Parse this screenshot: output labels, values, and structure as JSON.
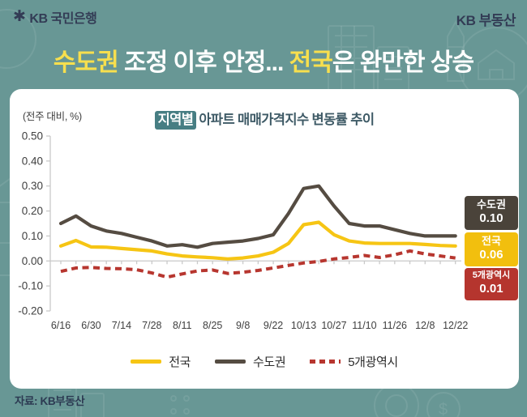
{
  "header": {
    "logo_brand": "KB 국민은행",
    "logo_star": "✱",
    "right_brand": "KB 부동산",
    "headline": {
      "part1_highlight": "수도권",
      "part2": " 조정 이후 안정... ",
      "part3_highlight": "전국",
      "part4": "은 완만한 상승"
    }
  },
  "card": {
    "unit_label": "(전주 대비, %)",
    "title": {
      "badge": "지역별",
      "text": "아파트 매매가격지수 변동률 추이"
    },
    "callouts": [
      {
        "label": "수도권",
        "value": "0.10",
        "color": "#4a433a"
      },
      {
        "label": "전국",
        "value": "0.06",
        "color": "#f2bf0e"
      },
      {
        "label": "5개광역시",
        "value": "0.01",
        "color": "#b5352e"
      }
    ],
    "legend": [
      {
        "label": "전국",
        "color": "#f6c514",
        "dashed": false
      },
      {
        "label": "수도권",
        "color": "#554c42",
        "dashed": false
      },
      {
        "label": "5개광역시",
        "color": "#b7362f",
        "dashed": true
      }
    ]
  },
  "footer": {
    "source": "자료: KB부동산"
  },
  "colors": {
    "background_teal": "#689795",
    "headline_yellow": "#f7df4e",
    "brand_navy": "#333c55",
    "badge_teal": "#477e83"
  },
  "chart_data": {
    "type": "line",
    "title": "지역별 아파트 매매가격지수 변동률 추이",
    "unit": "(전주 대비, %)",
    "ylim": [
      -0.2,
      0.5
    ],
    "y_ticks": [
      "0.50",
      "0.40",
      "0.30",
      "0.20",
      "0.10",
      "0.00",
      "-0.10",
      "-0.20"
    ],
    "x_tick_labels": [
      "6/16",
      "6/30",
      "7/14",
      "7/28",
      "8/11",
      "8/25",
      "9/8",
      "9/22",
      "10/13",
      "10/27",
      "11/10",
      "11/26",
      "12/8",
      "12/22"
    ],
    "n_points": 27,
    "label_every": 2,
    "grid": false,
    "legend_position": "bottom",
    "series": [
      {
        "name": "5개광역시",
        "color": "#b7362f",
        "dashed": true,
        "width": 4,
        "values": [
          -0.042,
          -0.028,
          -0.026,
          -0.03,
          -0.031,
          -0.035,
          -0.048,
          -0.065,
          -0.052,
          -0.04,
          -0.036,
          -0.05,
          -0.045,
          -0.038,
          -0.028,
          -0.018,
          -0.008,
          -0.002,
          0.008,
          0.014,
          0.022,
          0.014,
          0.025,
          0.04,
          0.028,
          0.02,
          0.012
        ]
      },
      {
        "name": "전국",
        "color": "#f6c514",
        "dashed": false,
        "width": 4.2,
        "values": [
          0.06,
          0.082,
          0.056,
          0.055,
          0.05,
          0.045,
          0.04,
          0.028,
          0.02,
          0.016,
          0.013,
          0.008,
          0.012,
          0.02,
          0.035,
          0.07,
          0.145,
          0.155,
          0.105,
          0.08,
          0.072,
          0.07,
          0.07,
          0.07,
          0.066,
          0.062,
          0.06
        ]
      },
      {
        "name": "수도권",
        "color": "#554c42",
        "dashed": false,
        "width": 4.2,
        "values": [
          0.15,
          0.18,
          0.14,
          0.12,
          0.11,
          0.095,
          0.08,
          0.06,
          0.065,
          0.055,
          0.07,
          0.075,
          0.08,
          0.09,
          0.105,
          0.19,
          0.29,
          0.3,
          0.22,
          0.15,
          0.14,
          0.14,
          0.125,
          0.11,
          0.1,
          0.1,
          0.1
        ]
      }
    ]
  }
}
